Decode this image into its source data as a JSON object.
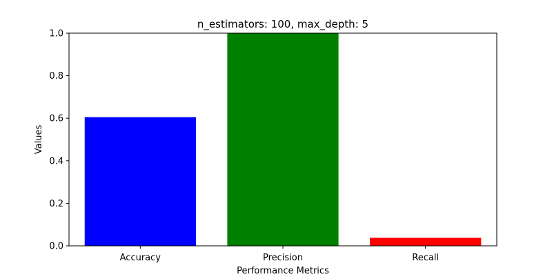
{
  "chart_data": {
    "type": "bar",
    "title": "n_estimators: 100, max_depth: 5",
    "xlabel": "Performance Metrics",
    "ylabel": "Values",
    "categories": [
      "Accuracy",
      "Precision",
      "Recall"
    ],
    "values": [
      0.605,
      1.0,
      0.038
    ],
    "colors": [
      "#0000ff",
      "#008000",
      "#ff0000"
    ],
    "ylim": [
      0.0,
      1.0
    ],
    "yticks": [
      "0.0",
      "0.2",
      "0.4",
      "0.6",
      "0.8",
      "1.0"
    ],
    "grid": false,
    "legend": "none"
  }
}
